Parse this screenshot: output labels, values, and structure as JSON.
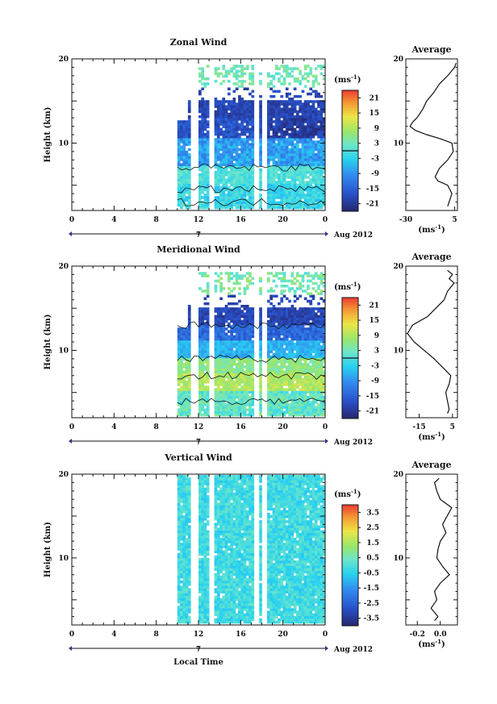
{
  "chart_data": [
    {
      "type": "heatmap",
      "title": "Zonal Wind",
      "ylabel": "Height (km)",
      "ylim": [
        2,
        20
      ],
      "y_ticks": [
        "10",
        "20"
      ],
      "x_ticks": [
        "0",
        "4",
        "8",
        "12",
        "16",
        "20",
        "0"
      ],
      "xlim": [
        0,
        24
      ],
      "date_marker": "7",
      "date_label": "Aug 2012",
      "colorbar": {
        "unit": "(ms",
        "unit_exp": "-1",
        "unit_close": ")",
        "ticks": [
          "21",
          "15",
          "9",
          "3",
          "-3",
          "-9",
          "-15",
          "-21"
        ],
        "range": [
          -24,
          24
        ],
        "contour_level": 0
      },
      "profile": {
        "title": "Average",
        "xlabel": "(ms",
        "xlabel_exp": "-1",
        "xlabel_close": ")",
        "x_ticks": [
          "-30",
          "5"
        ],
        "xlim": [
          -30,
          7
        ],
        "y_ticks": [
          "10",
          "20"
        ],
        "height_km": [
          2.5,
          3,
          4,
          5,
          5.5,
          6,
          7,
          8,
          9,
          10,
          10.5,
          11,
          11.5,
          12,
          12.5,
          13,
          14,
          15,
          16,
          17,
          18,
          19,
          19.5
        ],
        "values": [
          0,
          1,
          3,
          0,
          -7,
          -9,
          -6,
          0,
          4,
          3,
          -5,
          -15,
          -23,
          -27,
          -25,
          -22,
          -18,
          -15,
          -10,
          -6,
          0,
          5,
          6
        ]
      }
    },
    {
      "type": "heatmap",
      "title": "Meridional Wind",
      "ylabel": "Height (km)",
      "ylim": [
        2,
        20
      ],
      "y_ticks": [
        "10",
        "20"
      ],
      "x_ticks": [
        "0",
        "4",
        "8",
        "12",
        "16",
        "20",
        "0"
      ],
      "xlim": [
        0,
        24
      ],
      "date_marker": "7",
      "date_label": "Aug 2012",
      "colorbar": {
        "unit": "(ms",
        "unit_exp": "-1",
        "unit_close": ")",
        "ticks": [
          "21",
          "15",
          "9",
          "3",
          "-3",
          "-9",
          "-15",
          "-21"
        ],
        "range": [
          -24,
          24
        ],
        "contour_level": 0
      },
      "profile": {
        "title": "Average",
        "xlabel": "(ms",
        "xlabel_exp": "-1",
        "xlabel_close": ")",
        "x_ticks": [
          "-15",
          "5"
        ],
        "xlim": [
          -23,
          8
        ],
        "y_ticks": [
          "10",
          "20"
        ],
        "height_km": [
          2.5,
          3,
          4,
          5,
          6,
          7,
          8,
          9,
          10,
          11,
          12,
          13,
          14,
          15,
          16,
          17,
          18,
          18.5,
          19,
          19.5
        ],
        "values": [
          2,
          3,
          2,
          1,
          3,
          4,
          -1,
          -6,
          -12,
          -18,
          -22,
          -19,
          -10,
          -5,
          0,
          2,
          6,
          3,
          5,
          2
        ]
      }
    },
    {
      "type": "heatmap",
      "title": "Vertical Wind",
      "ylabel": "Height (km)",
      "xlabel": "Local Time",
      "ylim": [
        2,
        20
      ],
      "y_ticks": [
        "10",
        "20"
      ],
      "x_ticks": [
        "0",
        "4",
        "8",
        "12",
        "16",
        "20",
        "0"
      ],
      "xlim": [
        0,
        24
      ],
      "date_marker": "7",
      "date_label": "Aug 2012",
      "colorbar": {
        "unit": "(ms",
        "unit_exp": "-1",
        "unit_close": ")",
        "ticks": [
          "3.5",
          "2.5",
          "1.5",
          "0.5",
          "-0.5",
          "-1.5",
          "-2.5",
          "-3.5"
        ],
        "range": [
          -4,
          4
        ]
      },
      "profile": {
        "title": "Average",
        "xlabel": "(ms",
        "xlabel_exp": "-1",
        "xlabel_close": ")",
        "x_ticks": [
          "-0.2",
          "0.0"
        ],
        "xlim": [
          -0.3,
          0.15
        ],
        "y_ticks": [
          "10",
          "20"
        ],
        "height_km": [
          2.5,
          3,
          4,
          5,
          6,
          7,
          8,
          9,
          10,
          11,
          12,
          13,
          14,
          15,
          16,
          17,
          18,
          19,
          19.5
        ],
        "values": [
          -0.05,
          -0.02,
          -0.08,
          -0.03,
          -0.05,
          0.0,
          0.08,
          0.02,
          -0.03,
          -0.02,
          0.0,
          0.05,
          0.02,
          0.06,
          0.1,
          0.0,
          -0.03,
          -0.05,
          -0.01
        ]
      }
    }
  ]
}
